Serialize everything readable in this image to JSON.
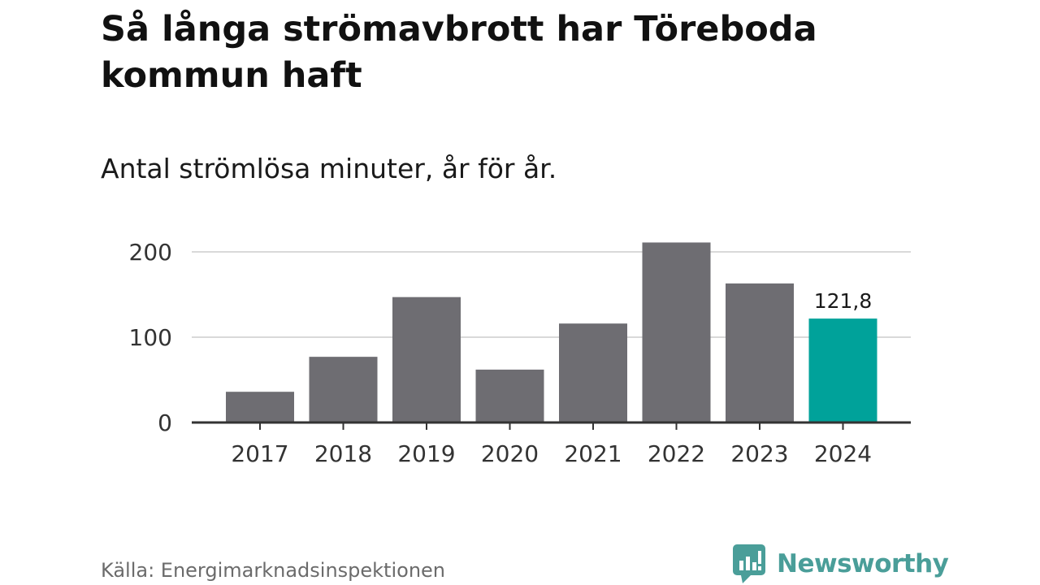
{
  "header": {
    "title": "Så långa strömavbrott har Töreboda kommun haft",
    "subtitle": "Antal strömlösa minuter, år för år."
  },
  "footer": {
    "source": "Källa: Energimarknadsinspektionen",
    "brand": "Newsworthy",
    "brand_icon": "newsworthy-logo-icon"
  },
  "chart_data": {
    "type": "bar",
    "categories": [
      "2017",
      "2018",
      "2019",
      "2020",
      "2021",
      "2022",
      "2023",
      "2024"
    ],
    "values": [
      36,
      77,
      147,
      62,
      116,
      211,
      163,
      121.8
    ],
    "ylim": [
      0,
      215
    ],
    "yticks": [
      0,
      100,
      200
    ],
    "ytick_labels": [
      "0",
      "100",
      "200"
    ],
    "grid": true,
    "colors": {
      "bar": "#6e6d72",
      "highlight": "#00a29a",
      "grid": "#d9d9d9",
      "axis": "#333333"
    },
    "highlight_index": 7,
    "data_labels": [
      {
        "index": 7,
        "text": "121,8"
      }
    ]
  }
}
